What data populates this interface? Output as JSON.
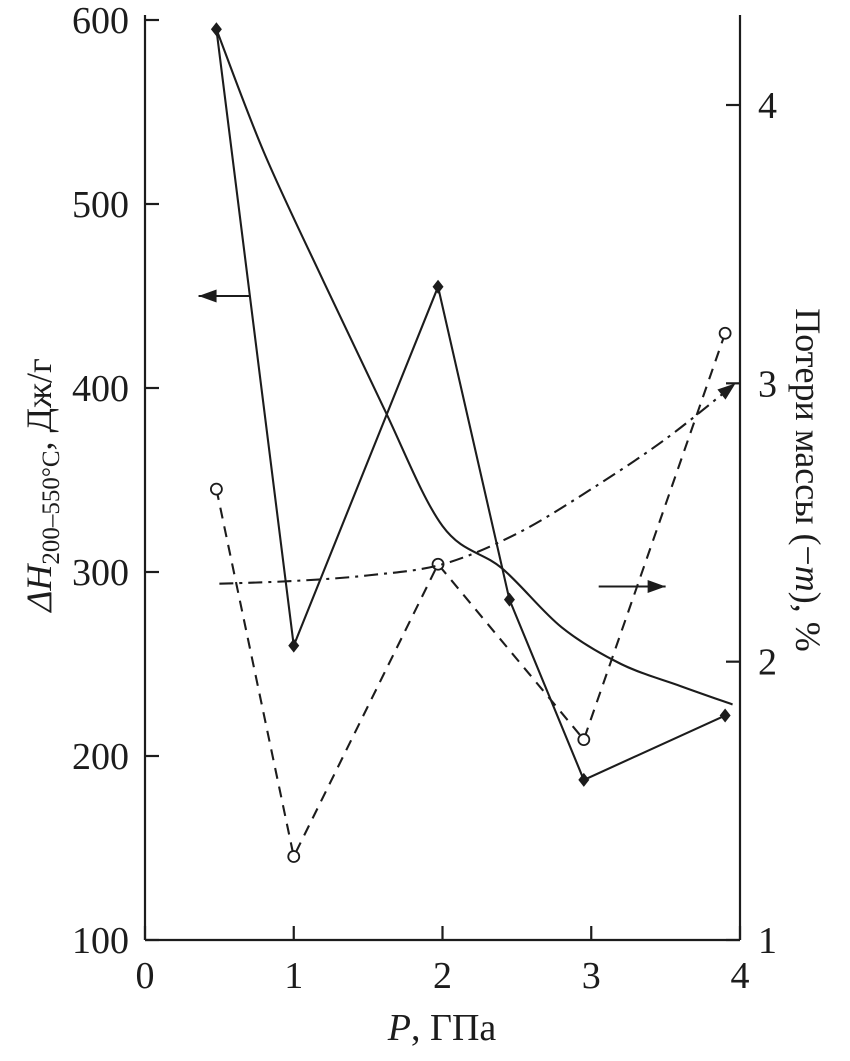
{
  "labels": {
    "y_left": {
      "italic": "ΔH",
      "subscript": "200–550°C",
      "rest": ", Дж/г"
    },
    "y_right": {
      "prefix": "Потери массы (−",
      "italic": "m",
      "suffix": "), %"
    },
    "x": {
      "italic": "P",
      "rest": ", ГПа"
    }
  },
  "colors": {
    "ink": "#1c1c1c",
    "background": "#ffffff"
  },
  "chart_data": {
    "type": "line",
    "title": "",
    "xlabel": "P, ГПа",
    "ylabel_left": "ΔH(200–550°C), Дж/г",
    "ylabel_right": "Потери массы (−m), %",
    "x": {
      "range": [
        0,
        4
      ],
      "ticks": [
        0,
        1,
        2,
        3,
        4
      ]
    },
    "y_left": {
      "range": [
        100,
        600
      ],
      "ticks": [
        600,
        500,
        400,
        300,
        200,
        100
      ]
    },
    "y_right": {
      "range": [
        1,
        4
      ],
      "ticks": [
        4,
        3,
        2,
        1
      ]
    },
    "grid": false,
    "legend": "none",
    "series": [
      {
        "name": "Enthalpy ΔH, zigzag (solid line, filled diamond markers, left axis)",
        "axis": "left",
        "style": "solid",
        "marker": "diamond-filled",
        "smooth": false,
        "x": [
          0.48,
          1.0,
          1.97,
          2.45,
          2.95,
          3.9
        ],
        "y": [
          595,
          260,
          455,
          285,
          187,
          222
        ]
      },
      {
        "name": "Enthalpy ΔH, smooth descending trend (solid line, no markers, left axis)",
        "axis": "left",
        "style": "solid",
        "marker": "none",
        "smooth": true,
        "x": [
          0.48,
          0.8,
          1.2,
          1.6,
          2.0,
          2.4,
          2.8,
          3.2,
          3.6,
          3.95
        ],
        "y": [
          595,
          528,
          458,
          390,
          325,
          302,
          270,
          250,
          238,
          228
        ]
      },
      {
        "name": "Mass loss −m, zigzag (dashed line, open circle markers, right axis)",
        "axis": "right",
        "style": "dashed",
        "marker": "circle-open",
        "smooth": false,
        "x": [
          0.48,
          1.0,
          1.97,
          2.95,
          3.9
        ],
        "y": [
          2.62,
          1.3,
          2.35,
          1.72,
          3.18
        ]
      },
      {
        "name": "Mass loss −m, rising trend (dash-dot line, arrow to right axis)",
        "axis": "right",
        "style": "dashdot",
        "marker": "none",
        "smooth": true,
        "end_arrow": true,
        "x": [
          0.5,
          1.0,
          1.5,
          2.0,
          2.5,
          3.0,
          3.5,
          3.97
        ],
        "y": [
          2.28,
          2.29,
          2.31,
          2.35,
          2.46,
          2.62,
          2.8,
          3.0
        ]
      }
    ],
    "annotations": [
      {
        "type": "arrow",
        "axis": "left",
        "from": [
          0.7,
          450
        ],
        "to": [
          0.36,
          450
        ],
        "meaning": "series read on left axis"
      },
      {
        "type": "arrow",
        "axis": "right",
        "from": [
          3.05,
          2.27
        ],
        "to": [
          3.5,
          2.27
        ],
        "meaning": "series read on right axis"
      }
    ]
  }
}
